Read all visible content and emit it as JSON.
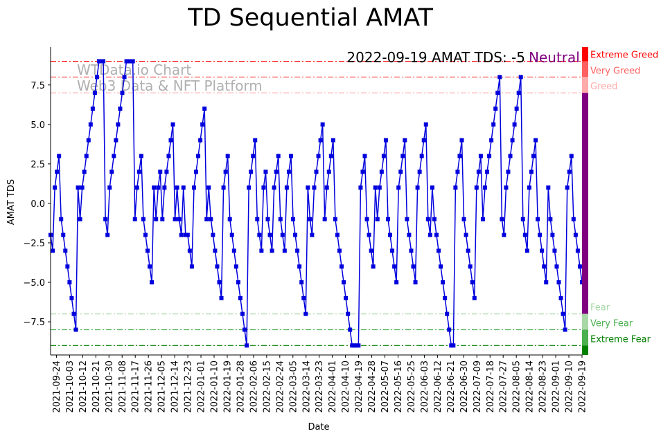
{
  "chart_data": {
    "type": "line",
    "title": "TD Sequential AMAT",
    "xlabel": "Date",
    "ylabel": "AMAT TDS",
    "ylim": [
      -9.6,
      9.9
    ],
    "yticks": [
      -7.5,
      -5.0,
      -2.5,
      0.0,
      2.5,
      5.0,
      7.5
    ],
    "ytick_labels": [
      "−7.5",
      "−5.0",
      "−2.5",
      "0.0",
      "2.5",
      "5.0",
      "7.5"
    ],
    "x_start": "2021-09-20",
    "x_end": "2022-09-19",
    "date_ticks": [
      "2021-09-24",
      "2021-10-03",
      "2021-10-12",
      "2021-10-21",
      "2021-10-30",
      "2021-11-08",
      "2021-11-17",
      "2021-11-26",
      "2021-12-05",
      "2021-12-14",
      "2021-12-23",
      "2022-01-01",
      "2022-01-10",
      "2022-01-19",
      "2022-01-28",
      "2022-02-06",
      "2022-02-15",
      "2022-02-24",
      "2022-03-05",
      "2022-03-14",
      "2022-03-23",
      "2022-04-01",
      "2022-04-10",
      "2022-04-19",
      "2022-04-28",
      "2022-05-07",
      "2022-05-16",
      "2022-05-25",
      "2022-06-03",
      "2022-06-12",
      "2022-06-21",
      "2022-06-30",
      "2022-07-09",
      "2022-07-18",
      "2022-07-27",
      "2022-08-05",
      "2022-08-14",
      "2022-08-23",
      "2022-09-01",
      "2022-09-10",
      "2022-09-19"
    ],
    "series": [
      {
        "name": "AMAT TDS",
        "color": "#0000dd",
        "marker": "square",
        "values": [
          -2,
          -3,
          1,
          2,
          3,
          -1,
          -2,
          -3,
          -4,
          -5,
          -6,
          -7,
          -8,
          1,
          -1,
          1,
          2,
          3,
          4,
          5,
          6,
          7,
          8,
          9,
          9,
          9,
          -1,
          -2,
          1,
          2,
          3,
          4,
          5,
          6,
          7,
          8,
          9,
          9,
          9,
          9,
          -1,
          1,
          2,
          3,
          -1,
          -2,
          -3,
          -4,
          -5,
          1,
          -1,
          1,
          2,
          -1,
          1,
          2,
          3,
          4,
          5,
          -1,
          1,
          -1,
          -2,
          1,
          -2,
          -2,
          -3,
          -4,
          1,
          2,
          3,
          4,
          5,
          6,
          -1,
          1,
          -1,
          -2,
          -3,
          -4,
          -5,
          -6,
          1,
          2,
          3,
          -1,
          -2,
          -3,
          -4,
          -5,
          -6,
          -7,
          -8,
          -9,
          1,
          2,
          3,
          4,
          -1,
          -2,
          -3,
          1,
          2,
          -1,
          -2,
          -3,
          1,
          2,
          3,
          -1,
          -2,
          -3,
          1,
          2,
          3,
          -1,
          -2,
          -3,
          -4,
          -5,
          -6,
          -7,
          1,
          -1,
          -2,
          1,
          2,
          3,
          4,
          5,
          -1,
          1,
          2,
          3,
          4,
          -1,
          -2,
          -3,
          -4,
          -5,
          -6,
          -7,
          -8,
          -9,
          -9,
          -9,
          -9,
          1,
          2,
          3,
          -1,
          -2,
          -3,
          -4,
          1,
          -1,
          1,
          2,
          3,
          4,
          -1,
          -2,
          -3,
          -4,
          -5,
          1,
          2,
          3,
          4,
          -1,
          -2,
          -3,
          -4,
          -5,
          1,
          2,
          3,
          4,
          5,
          -1,
          -2,
          1,
          -1,
          -2,
          -3,
          -4,
          -5,
          -6,
          -7,
          -8,
          -9,
          -9,
          1,
          2,
          3,
          4,
          -1,
          -2,
          -3,
          -4,
          -5,
          -6,
          1,
          2,
          3,
          -1,
          1,
          2,
          3,
          4,
          5,
          6,
          7,
          8,
          -1,
          -2,
          1,
          2,
          3,
          4,
          5,
          6,
          7,
          8,
          -1,
          -2,
          -3,
          1,
          2,
          3,
          4,
          -1,
          -2,
          -3,
          -4,
          -5,
          1,
          -1,
          -2,
          -3,
          -4,
          -5,
          -6,
          -7,
          -8,
          1,
          2,
          3,
          -1,
          -2,
          -3,
          -4,
          -5
        ]
      }
    ],
    "thresholds": [
      {
        "label": "Extreme Greed",
        "value": 9,
        "color": "#ff0000"
      },
      {
        "label": "Very Greed",
        "value": 8,
        "color": "#ff6060"
      },
      {
        "label": "Greed",
        "value": 7,
        "color": "#ffaaaa"
      },
      {
        "label": "Fear",
        "value": -7,
        "color": "#a8d8a8"
      },
      {
        "label": "Very Fear",
        "value": -8,
        "color": "#4caf50"
      },
      {
        "label": "Extreme Fear",
        "value": -9,
        "color": "#008000"
      }
    ],
    "neutral_color": "#800080",
    "annotation": {
      "text": "2022-09-19 AMAT TDS: -5",
      "sentiment": "Neutral",
      "sentiment_color": "#800080"
    },
    "watermark": [
      "WTData.io Chart",
      "Web3 Data & NFT Platform"
    ]
  }
}
